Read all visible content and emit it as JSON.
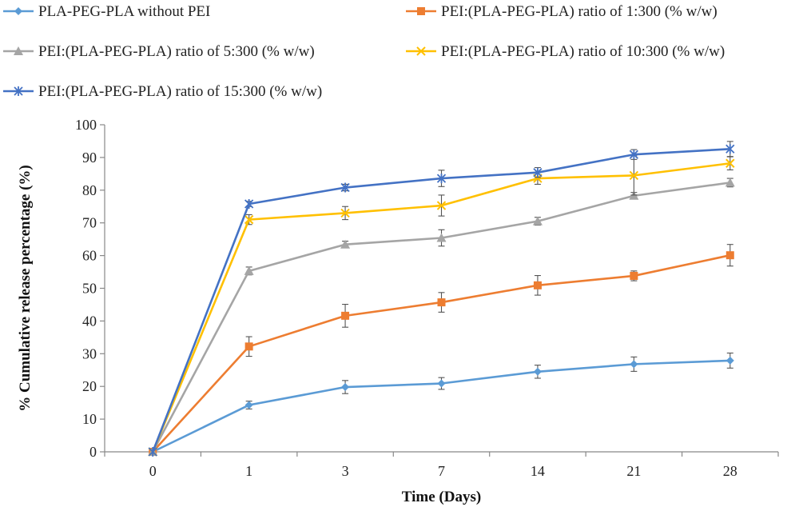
{
  "chart_data": {
    "type": "line",
    "categories": [
      "0",
      "1",
      "3",
      "7",
      "14",
      "21",
      "28"
    ],
    "xlabel": "Time (Days)",
    "ylabel": "% Cumulative release percentage (%)",
    "ylim": [
      0,
      100
    ],
    "yticks": [
      0,
      10,
      20,
      30,
      40,
      50,
      60,
      70,
      80,
      90,
      100
    ],
    "grid": false,
    "legend_position": "top",
    "series": [
      {
        "name": "PLA-PEG-PLA without PEI",
        "color": "#5b9bd5",
        "marker": "diamond",
        "values": [
          0,
          14.3,
          19.8,
          20.9,
          24.5,
          26.8,
          27.9
        ],
        "errors": [
          0,
          1.2,
          2.0,
          1.8,
          2.0,
          2.2,
          2.3
        ]
      },
      {
        "name": "PEI:(PLA-PEG-PLA) ratio of 1:300 (% w/w)",
        "color": "#ed7d31",
        "marker": "square",
        "values": [
          0,
          32.2,
          41.6,
          45.7,
          50.9,
          53.8,
          60.1
        ],
        "errors": [
          0,
          3.0,
          3.5,
          3.0,
          3.0,
          1.5,
          3.3
        ]
      },
      {
        "name": "PEI:(PLA-PEG-PLA) ratio of 5:300 (% w/w)",
        "color": "#a5a5a5",
        "marker": "triangle",
        "values": [
          0,
          55.3,
          63.4,
          65.4,
          70.5,
          78.3,
          82.3
        ],
        "errors": [
          0,
          1.2,
          1.0,
          2.5,
          1.2,
          1.0,
          1.3
        ]
      },
      {
        "name": "PEI:(PLA-PEG-PLA) ratio of 10:300 (% w/w)",
        "color": "#ffc000",
        "marker": "x",
        "values": [
          0,
          71.0,
          73.0,
          75.3,
          83.6,
          84.5,
          88.2
        ],
        "errors": [
          0,
          1.5,
          2.0,
          3.2,
          1.8,
          6.0,
          2.0
        ]
      },
      {
        "name": "PEI:(PLA-PEG-PLA) ratio of 15:300 (% w/w)",
        "color": "#4472c4",
        "marker": "star",
        "values": [
          0,
          75.8,
          80.8,
          83.6,
          85.4,
          90.9,
          92.6
        ],
        "errors": [
          0,
          0.8,
          1.0,
          2.5,
          1.5,
          1.5,
          2.3
        ]
      }
    ]
  }
}
